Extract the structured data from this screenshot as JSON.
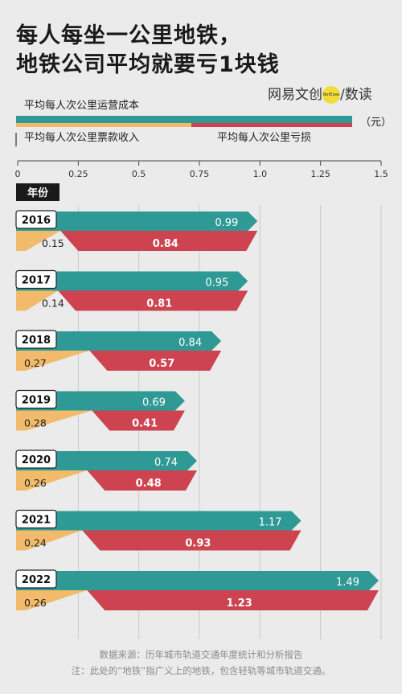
{
  "header": {
    "title_line1": "每人每坐一公里地铁，",
    "title_line2": "地铁公司平均就要亏1块钱"
  },
  "brand": {
    "name_a": "网易文创",
    "mark": "NetEase",
    "sep": "/",
    "name_b": "数读"
  },
  "legend": {
    "cost": "平均每人次公里运营成本",
    "revenue": "平均每人次公里票款收入",
    "loss": "平均每人次公里亏损",
    "unit": "（元）"
  },
  "row_header": "年份",
  "colors": {
    "cost": "#2f9a95",
    "revenue": "#f2bb6b",
    "loss": "#cd4350"
  },
  "chart_data": {
    "type": "bar",
    "x_ticks": [
      "0",
      "0.25",
      "0.5",
      "0.75",
      "1.0",
      "1.25",
      "1.5"
    ],
    "xlim": [
      0,
      1.5
    ],
    "categories": [
      "2016",
      "2017",
      "2018",
      "2019",
      "2020",
      "2021",
      "2022"
    ],
    "series": [
      {
        "name": "平均每人次公里运营成本",
        "values": [
          0.99,
          0.95,
          0.84,
          0.69,
          0.74,
          1.17,
          1.49
        ],
        "labels": [
          "0.99",
          "0.95",
          "0.84",
          "0.69",
          "0.74",
          "1.17",
          "1.49"
        ]
      },
      {
        "name": "平均每人次公里票款收入",
        "values": [
          0.15,
          0.14,
          0.27,
          0.28,
          0.26,
          0.24,
          0.26
        ],
        "labels": [
          "0.15",
          "0.14",
          "0.27",
          "0.28",
          "0.26",
          "0.24",
          "0.26"
        ]
      },
      {
        "name": "平均每人次公里亏损",
        "values": [
          0.84,
          0.81,
          0.57,
          0.41,
          0.48,
          0.93,
          1.23
        ],
        "labels": [
          "0.84",
          "0.81",
          "0.57",
          "0.41",
          "0.48",
          "0.93",
          "1.23"
        ]
      }
    ]
  },
  "footer": {
    "source": "数据来源：历年城市轨道交通年度统计和分析报告",
    "note": "注：此处的“地铁”指广义上的地铁，包含轻轨等城市轨道交通。"
  }
}
